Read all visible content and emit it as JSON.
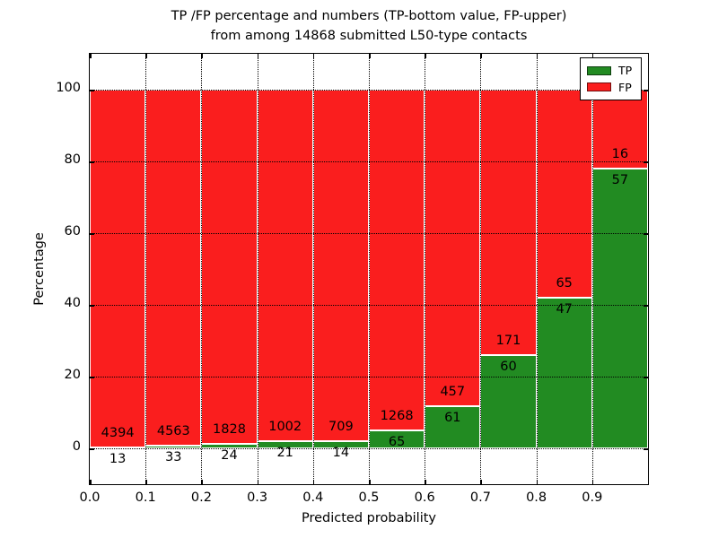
{
  "figure": {
    "title_line1": "TP /FP percentage and numbers (TP-bottom value, FP-upper)",
    "title_line2": "from among 14868 submitted L50-type contacts"
  },
  "chart_data": {
    "type": "bar",
    "subtype": "stacked-percentage",
    "title": "TP /FP percentage and numbers (TP-bottom value, FP-upper) from among 14868 submitted L50-type contacts",
    "xlabel": "Predicted probability",
    "ylabel": "Percentage",
    "x_tick_labels": [
      "0.0",
      "0.1",
      "0.2",
      "0.3",
      "0.4",
      "0.5",
      "0.6",
      "0.7",
      "0.8",
      "0.9"
    ],
    "y_ticks": [
      0,
      20,
      40,
      60,
      80,
      100
    ],
    "ylim": [
      -10,
      110
    ],
    "xlim": [
      0.0,
      1.0
    ],
    "bin_width": 0.1,
    "categories": [
      "0.0-0.1",
      "0.1-0.2",
      "0.2-0.3",
      "0.3-0.4",
      "0.4-0.5",
      "0.5-0.6",
      "0.6-0.7",
      "0.7-0.8",
      "0.8-0.9",
      "0.9-1.0"
    ],
    "series": [
      {
        "name": "TP",
        "color": "#228b22",
        "counts": [
          13,
          33,
          24,
          21,
          14,
          65,
          61,
          60,
          47,
          57
        ],
        "percent": [
          0.29,
          0.72,
          1.3,
          2.05,
          1.94,
          4.88,
          11.78,
          25.97,
          41.96,
          78.08
        ]
      },
      {
        "name": "FP",
        "color": "#fa1e1e",
        "counts": [
          4394,
          4563,
          1828,
          1002,
          709,
          1268,
          457,
          171,
          65,
          16
        ],
        "percent": [
          99.71,
          99.28,
          98.7,
          97.95,
          98.06,
          95.12,
          88.22,
          74.03,
          58.04,
          21.92
        ]
      }
    ],
    "total_contacts": 14868,
    "grid": "dotted",
    "legend_position": "upper right"
  },
  "colors": {
    "tp_green": "#228b22",
    "fp_red": "#fa1e1e",
    "grid": "#000000",
    "bar_edge": "#ffffff",
    "background": "#ffffff"
  }
}
